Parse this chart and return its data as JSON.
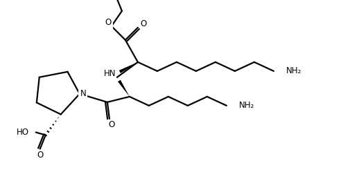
{
  "bg_color": "#ffffff",
  "line_color": "#000000",
  "line_width": 1.6,
  "font_size": 8.5,
  "figsize": [
    5.05,
    2.75
  ],
  "dpi": 100,
  "xlim": [
    0,
    505
  ],
  "ylim": [
    0,
    275
  ]
}
